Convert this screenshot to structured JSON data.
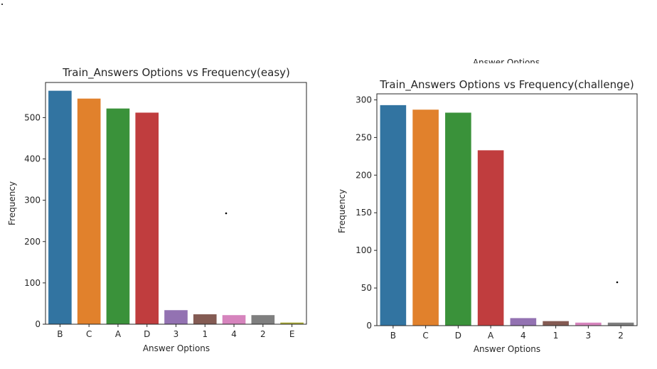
{
  "chart_data": [
    {
      "type": "bar",
      "title": "Train_Answers Options vs Frequency(easy)",
      "xlabel": "Answer Options",
      "ylabel": "Frequency",
      "categories": [
        "B",
        "C",
        "A",
        "D",
        "3",
        "1",
        "4",
        "2",
        "E"
      ],
      "values": [
        565,
        546,
        522,
        512,
        34,
        24,
        22,
        22,
        4
      ],
      "colors": [
        "#3274a1",
        "#e1812c",
        "#3a923a",
        "#c03d3e",
        "#9372b2",
        "#845b53",
        "#d684bd",
        "#7f7f7f",
        "#a9aa35"
      ],
      "ylim": [
        0,
        585
      ],
      "yticks": [
        0,
        100,
        200,
        300,
        400,
        500
      ],
      "grid": false,
      "legend": "none"
    },
    {
      "type": "bar",
      "title": "Train_Answers Options vs Frequency(challenge)",
      "xlabel": "Answer Options",
      "ylabel": "Frequency",
      "categories": [
        "B",
        "C",
        "D",
        "A",
        "4",
        "1",
        "3",
        "2"
      ],
      "values": [
        293,
        287,
        283,
        233,
        10,
        6,
        4,
        4
      ],
      "colors": [
        "#3274a1",
        "#e1812c",
        "#3a923a",
        "#c03d3e",
        "#9372b2",
        "#845b53",
        "#d684bd",
        "#7f7f7f"
      ],
      "ylim": [
        0,
        308
      ],
      "yticks": [
        0,
        50,
        100,
        150,
        200,
        250,
        300
      ],
      "grid": false,
      "legend": "none",
      "clipped_header": "Answer Options"
    }
  ]
}
